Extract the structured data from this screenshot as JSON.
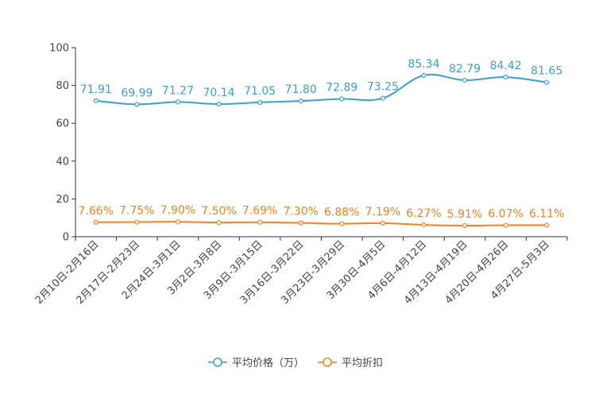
{
  "chart_data": {
    "type": "line",
    "title": "",
    "xlabel": "",
    "ylabel": "",
    "ylim": [
      0,
      100
    ],
    "yticks": [
      "0",
      "20",
      "40",
      "60",
      "80",
      "100"
    ],
    "categories": [
      "2月10日-2月16日",
      "2月17日-2月23日",
      "2月24日-3月1日",
      "3月2日-3月8日",
      "3月9日-3月15日",
      "3月16日-3月22日",
      "3月23日-3月29日",
      "3月30日-4月5日",
      "4月6日-4月12日",
      "4月13日-4月19日",
      "4月20日-4月26日",
      "4月27日-5月3日"
    ],
    "series": [
      {
        "name": "平均价格（万）",
        "color": "#3b9fd1",
        "values": [
          71.91,
          69.99,
          71.27,
          70.14,
          71.05,
          71.8,
          72.89,
          73.25,
          85.34,
          82.79,
          84.42,
          81.65
        ],
        "labels": [
          "71.91",
          "69.99",
          "71.27",
          "70.14",
          "71.05",
          "71.80",
          "72.89",
          "73.25",
          "85.34",
          "82.79",
          "84.42",
          "81.65"
        ]
      },
      {
        "name": "平均折扣",
        "color": "#f5801f",
        "values": [
          7.66,
          7.75,
          7.9,
          7.5,
          7.69,
          7.3,
          6.88,
          7.19,
          6.27,
          5.91,
          6.07,
          6.11
        ],
        "labels": [
          "7.66%",
          "7.75%",
          "7.90%",
          "7.50%",
          "7.69%",
          "7.30%",
          "6.88%",
          "7.19%",
          "6.27%",
          "5.91%",
          "6.07%",
          "6.11%"
        ]
      }
    ],
    "legend": "bottom-center"
  }
}
